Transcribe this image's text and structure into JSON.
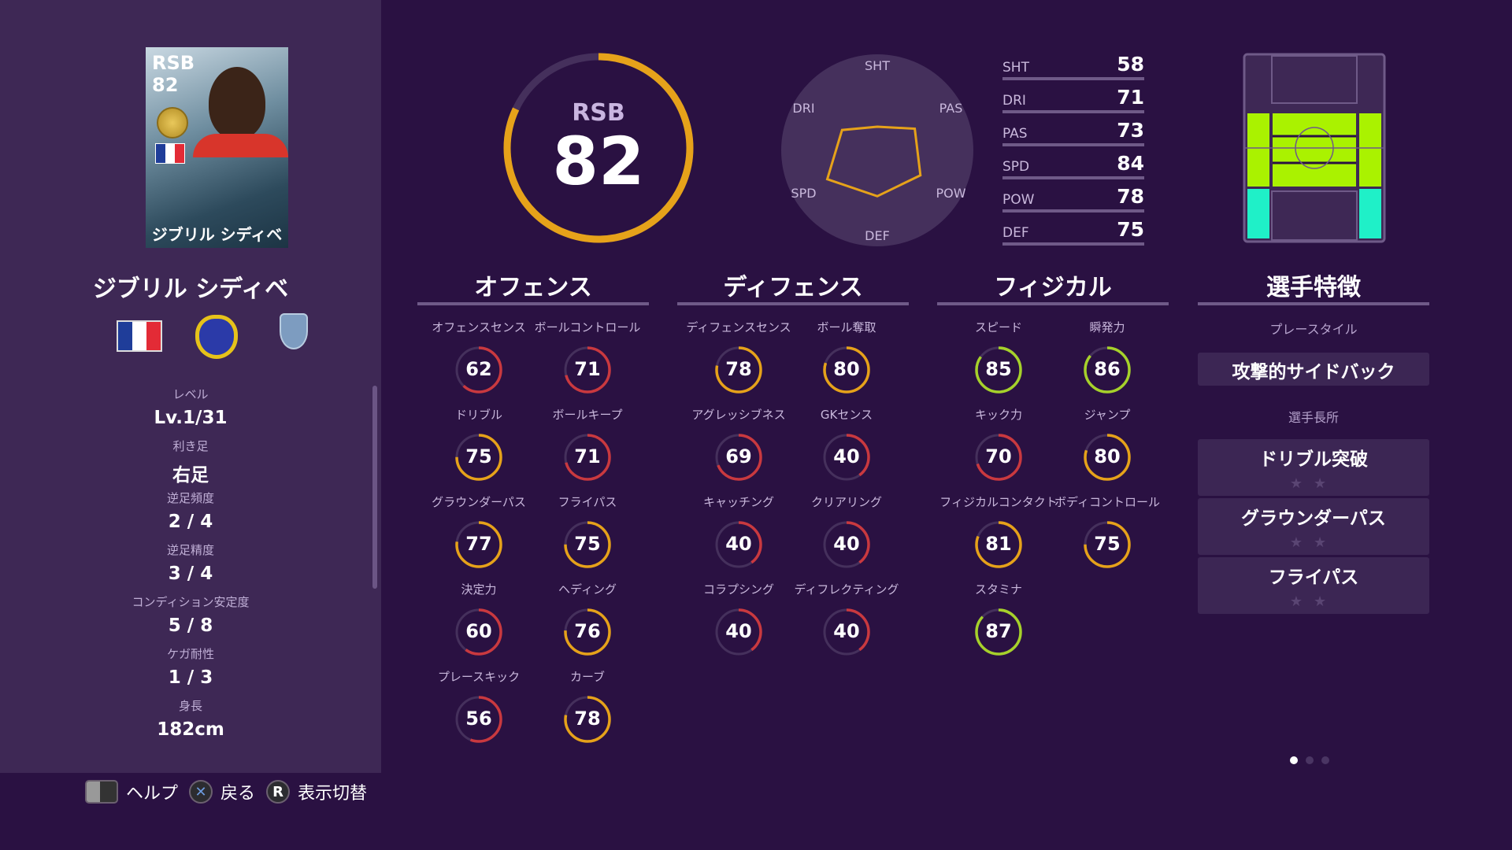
{
  "player": {
    "name": "ジブリル シディベ",
    "position": "RSB",
    "overall": 82,
    "card_name": "ジブリル シディベ"
  },
  "info": [
    {
      "label": "レベル",
      "value": "Lv.1/31"
    },
    {
      "label": "利き足",
      "value": "右足"
    },
    {
      "label": "逆足頻度",
      "value": "2 / 4"
    },
    {
      "label": "逆足精度",
      "value": "3 / 4"
    },
    {
      "label": "コンディション安定度",
      "value": "5 / 8"
    },
    {
      "label": "ケガ耐性",
      "value": "1 / 3"
    },
    {
      "label": "身長",
      "value": "182cm"
    }
  ],
  "radar": {
    "labels": [
      "SHT",
      "PAS",
      "POW",
      "DEF",
      "SPD",
      "DRI"
    ]
  },
  "summary": [
    {
      "key": "SHT",
      "value": 58
    },
    {
      "key": "DRI",
      "value": 71
    },
    {
      "key": "PAS",
      "value": 73
    },
    {
      "key": "SPD",
      "value": 84
    },
    {
      "key": "POW",
      "value": 78
    },
    {
      "key": "DEF",
      "value": 75
    }
  ],
  "sections": [
    {
      "title": "オフェンス",
      "stats": [
        {
          "label": "オフェンスセンス",
          "value": 62
        },
        {
          "label": "ボールコントロール",
          "value": 71
        },
        {
          "label": "ドリブル",
          "value": 75
        },
        {
          "label": "ボールキープ",
          "value": 71
        },
        {
          "label": "グラウンダーパス",
          "value": 77
        },
        {
          "label": "フライパス",
          "value": 75
        },
        {
          "label": "決定力",
          "value": 60
        },
        {
          "label": "ヘディング",
          "value": 76
        },
        {
          "label": "プレースキック",
          "value": 56
        },
        {
          "label": "カーブ",
          "value": 78
        }
      ]
    },
    {
      "title": "ディフェンス",
      "stats": [
        {
          "label": "ディフェンスセンス",
          "value": 78
        },
        {
          "label": "ボール奪取",
          "value": 80
        },
        {
          "label": "アグレッシブネス",
          "value": 69
        },
        {
          "label": "GKセンス",
          "value": 40
        },
        {
          "label": "キャッチング",
          "value": 40
        },
        {
          "label": "クリアリング",
          "value": 40
        },
        {
          "label": "コラプシング",
          "value": 40
        },
        {
          "label": "ディフレクティング",
          "value": 40
        }
      ]
    },
    {
      "title": "フィジカル",
      "stats": [
        {
          "label": "スピード",
          "value": 85
        },
        {
          "label": "瞬発力",
          "value": 86
        },
        {
          "label": "キック力",
          "value": 70
        },
        {
          "label": "ジャンプ",
          "value": 80
        },
        {
          "label": "フィジカルコンタクト",
          "value": 81
        },
        {
          "label": "ボディコントロール",
          "value": 75
        },
        {
          "label": "スタミナ",
          "value": 87
        }
      ]
    }
  ],
  "traits": {
    "title": "選手特徴",
    "playstyle_label": "プレースタイル",
    "playstyle": "攻撃的サイドバック",
    "strengths_label": "選手長所",
    "strengths": [
      {
        "name": "ドリブル突破",
        "stars": "★★"
      },
      {
        "name": "グラウンダーパス",
        "stars": "★★"
      },
      {
        "name": "フライパス",
        "stars": "★★"
      }
    ]
  },
  "footer": {
    "help": "ヘルプ",
    "back": "戻る",
    "toggle": "表示切替",
    "toggle_key": "R",
    "back_key": "✕"
  },
  "pagination": {
    "current": 1,
    "total": 3
  },
  "colors": {
    "red": "#c9393f",
    "yellow": "#e6a21a",
    "green": "#a6d12b",
    "ring_track": "#45305c"
  }
}
